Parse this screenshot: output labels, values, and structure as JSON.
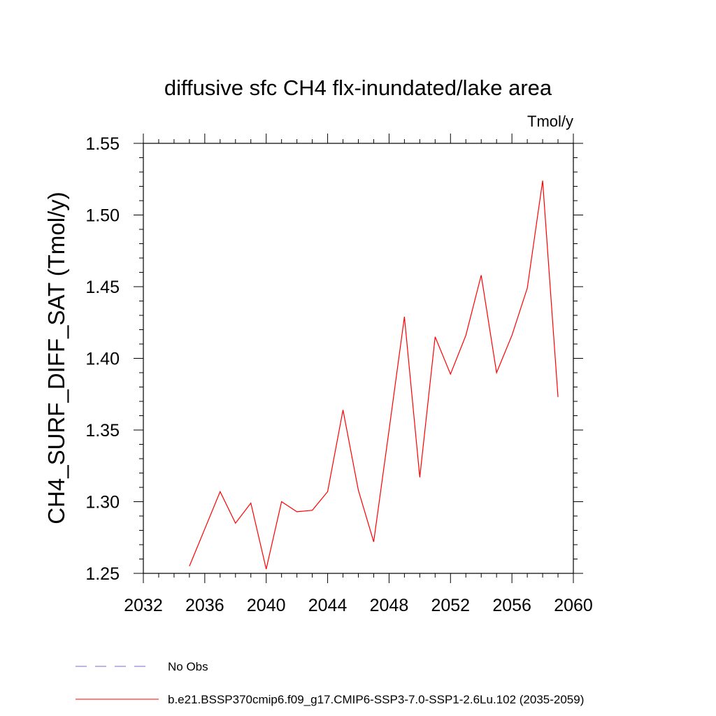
{
  "chart_data": {
    "type": "line",
    "title": "diffusive sfc CH4 flx-inundated/lake area",
    "units_label": "Tmol/y",
    "ylabel": "CH4_SURF_DIFF_SAT  (Tmol/y)",
    "xlabel": "",
    "xlim": [
      2032,
      2060
    ],
    "ylim": [
      1.25,
      1.55
    ],
    "x_ticks": [
      2032,
      2036,
      2040,
      2044,
      2048,
      2052,
      2056,
      2060
    ],
    "x_tick_labels": [
      "2032",
      "2036",
      "2040",
      "2044",
      "2048",
      "2052",
      "2056",
      "2060"
    ],
    "x_minor_step": 1,
    "y_ticks": [
      1.25,
      1.3,
      1.35,
      1.4,
      1.45,
      1.5,
      1.55
    ],
    "y_tick_labels": [
      "1.25",
      "1.30",
      "1.35",
      "1.40",
      "1.45",
      "1.50",
      "1.55"
    ],
    "y_minor_step": 0.01,
    "grid": false,
    "legend_position": "bottom",
    "series": [
      {
        "name": "b.e21.BSSP370cmip6.f09_g17.CMIP6-SSP3-7.0-SSP1-2.6Lu.102 (2035-2059)",
        "color": "#ff0000",
        "x": [
          2035,
          2036,
          2037,
          2038,
          2039,
          2040,
          2041,
          2042,
          2043,
          2044,
          2045,
          2046,
          2047,
          2048,
          2049,
          2050,
          2051,
          2052,
          2053,
          2054,
          2055,
          2056,
          2057,
          2058,
          2059
        ],
        "values": [
          1.255,
          1.281,
          1.307,
          1.285,
          1.299,
          1.253,
          1.3,
          1.293,
          1.294,
          1.307,
          1.364,
          1.308,
          1.272,
          1.35,
          1.429,
          1.317,
          1.415,
          1.389,
          1.416,
          1.458,
          1.39,
          1.416,
          1.449,
          1.524,
          1.373
        ]
      }
    ],
    "legend": [
      {
        "label": "No Obs",
        "color": "#7b68c8",
        "style": "dashed"
      },
      {
        "label": "b.e21.BSSP370cmip6.f09_g17.CMIP6-SSP3-7.0-SSP1-2.6Lu.102 (2035-2059)",
        "color": "#ff0000",
        "style": "solid"
      }
    ]
  }
}
